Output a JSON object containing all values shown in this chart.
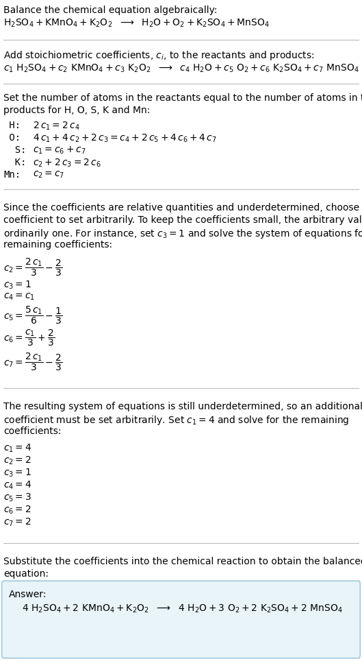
{
  "bg_color": "#ffffff",
  "text_color": "#000000",
  "answer_box_color": "#e8f4f8",
  "answer_box_edge": "#a0c8e0",
  "fig_width": 5.29,
  "fig_height": 9.64,
  "dpi": 100,
  "font_size": 10.0,
  "font_family": "DejaVu Sans",
  "hrule_color": "#bbbbbb",
  "hrule_lw": 0.8,
  "title": "Balance the chemical equation algebraically:",
  "eq1": "$\\mathrm{H_2SO_4 + KMnO_4 + K_2O_2}$  $\\longrightarrow$  $\\mathrm{H_2O + O_2 + K_2SO_4 + MnSO_4}$",
  "coeff_intro": "Add stoichiometric coefficients, $c_i$, to the reactants and products:",
  "eq2": "$c_1\\ \\mathrm{H_2SO_4} + c_2\\ \\mathrm{KMnO_4} + c_3\\ \\mathrm{K_2O_2}$  $\\longrightarrow$  $c_4\\ \\mathrm{H_2O} + c_5\\ \\mathrm{O_2} + c_6\\ \\mathrm{K_2SO_4} + c_7\\ \\mathrm{MnSO_4}$",
  "atoms_intro1": "Set the number of atoms in the reactants equal to the number of atoms in the",
  "atoms_intro2": "products for H, O, S, K and Mn:",
  "atom_labels": [
    " H:",
    " O:",
    "  S:",
    "  K:",
    "Mn:"
  ],
  "atom_eqs": [
    "$2\\,c_1 = 2\\,c_4$",
    "$4\\,c_1 + 4\\,c_2 + 2\\,c_3 = c_4 + 2\\,c_5 + 4\\,c_6 + 4\\,c_7$",
    "$c_1 = c_6 + c_7$",
    "$c_2 + 2\\,c_3 = 2\\,c_6$",
    "$c_2 = c_7$"
  ],
  "para1_lines": [
    "Since the coefficients are relative quantities and underdetermined, choose a",
    "coefficient to set arbitrarily. To keep the coefficients small, the arbitrary value is",
    "ordinarily one. For instance, set $c_3 = 1$ and solve the system of equations for the",
    "remaining coefficients:"
  ],
  "sol1": [
    "$c_2 = \\dfrac{2\\,c_1}{3} - \\dfrac{2}{3}$",
    "$c_3 = 1$",
    "$c_4 = c_1$",
    "$c_5 = \\dfrac{5\\,c_1}{6} - \\dfrac{1}{3}$",
    "$c_6 = \\dfrac{c_1}{3} + \\dfrac{2}{3}$",
    "$c_7 = \\dfrac{2\\,c_1}{3} - \\dfrac{2}{3}$"
  ],
  "sol1_has_frac": [
    true,
    false,
    false,
    true,
    true,
    true
  ],
  "para2_lines": [
    "The resulting system of equations is still underdetermined, so an additional",
    "coefficient must be set arbitrarily. Set $c_1 = 4$ and solve for the remaining",
    "coefficients:"
  ],
  "sol2": [
    "$c_1 = 4$",
    "$c_2 = 2$",
    "$c_3 = 1$",
    "$c_4 = 4$",
    "$c_5 = 3$",
    "$c_6 = 2$",
    "$c_7 = 2$"
  ],
  "subst1": "Substitute the coefficients into the chemical reaction to obtain the balanced",
  "subst2": "equation:",
  "answer_label": "Answer:",
  "answer_eq": "$4\\ \\mathrm{H_2SO_4} + 2\\ \\mathrm{KMnO_4} + \\mathrm{K_2O_2}$  $\\longrightarrow$  $4\\ \\mathrm{H_2O} + 3\\ \\mathrm{O_2} + 2\\ \\mathrm{K_2SO_4} + 2\\ \\mathrm{MnSO_4}$"
}
